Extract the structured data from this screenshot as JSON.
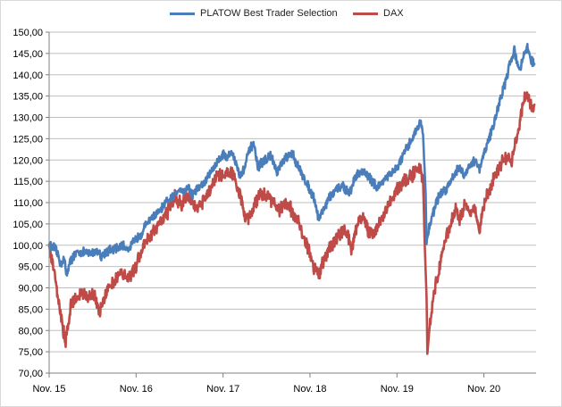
{
  "chart_data": {
    "type": "line",
    "title": "",
    "xlabel": "",
    "ylabel": "",
    "ylim": [
      70,
      150
    ],
    "y_ticks": [
      "70,00",
      "75,00",
      "80,00",
      "85,00",
      "90,00",
      "95,00",
      "100,00",
      "105,00",
      "110,00",
      "115,00",
      "120,00",
      "125,00",
      "130,00",
      "135,00",
      "140,00",
      "145,00",
      "150,00"
    ],
    "x_tick_labels": [
      "Nov. 15",
      "Nov. 16",
      "Nov. 17",
      "Nov. 18",
      "Nov. 19",
      "Nov. 20"
    ],
    "x_range_years": [
      2015.9,
      2021.5
    ],
    "grid": "horizontal",
    "legend_position": "top",
    "series": [
      {
        "name": "PLATOW Best Trader Selection",
        "color": "#4a7ebb",
        "points": [
          [
            2015.9,
            100.0
          ],
          [
            2015.95,
            99.5
          ],
          [
            2016.0,
            98.0
          ],
          [
            2016.03,
            95.5
          ],
          [
            2016.07,
            97.0
          ],
          [
            2016.1,
            93.0
          ],
          [
            2016.13,
            95.5
          ],
          [
            2016.18,
            97.5
          ],
          [
            2016.25,
            98.5
          ],
          [
            2016.35,
            98.0
          ],
          [
            2016.45,
            98.8
          ],
          [
            2016.5,
            97.5
          ],
          [
            2016.55,
            98.5
          ],
          [
            2016.65,
            99.0
          ],
          [
            2016.75,
            99.8
          ],
          [
            2016.82,
            99.2
          ],
          [
            2016.88,
            101.0
          ],
          [
            2016.95,
            102.5
          ],
          [
            2017.05,
            106.0
          ],
          [
            2017.15,
            107.5
          ],
          [
            2017.25,
            110.0
          ],
          [
            2017.35,
            112.0
          ],
          [
            2017.4,
            113.5
          ],
          [
            2017.45,
            112.5
          ],
          [
            2017.5,
            113.8
          ],
          [
            2017.55,
            112.0
          ],
          [
            2017.62,
            113.5
          ],
          [
            2017.7,
            115.0
          ],
          [
            2017.78,
            118.0
          ],
          [
            2017.85,
            120.0
          ],
          [
            2017.9,
            121.5
          ],
          [
            2017.95,
            120.5
          ],
          [
            2018.0,
            122.0
          ],
          [
            2018.05,
            119.0
          ],
          [
            2018.1,
            116.0
          ],
          [
            2018.15,
            118.5
          ],
          [
            2018.2,
            122.0
          ],
          [
            2018.25,
            124.0
          ],
          [
            2018.3,
            118.0
          ],
          [
            2018.35,
            119.5
          ],
          [
            2018.45,
            121.0
          ],
          [
            2018.52,
            117.0
          ],
          [
            2018.6,
            120.0
          ],
          [
            2018.7,
            121.5
          ],
          [
            2018.75,
            119.0
          ],
          [
            2018.85,
            115.0
          ],
          [
            2018.9,
            113.0
          ],
          [
            2018.95,
            111.0
          ],
          [
            2019.0,
            106.0
          ],
          [
            2019.05,
            108.5
          ],
          [
            2019.12,
            111.0
          ],
          [
            2019.2,
            113.0
          ],
          [
            2019.28,
            114.0
          ],
          [
            2019.35,
            112.0
          ],
          [
            2019.42,
            116.0
          ],
          [
            2019.5,
            117.5
          ],
          [
            2019.55,
            116.5
          ],
          [
            2019.62,
            115.0
          ],
          [
            2019.68,
            113.5
          ],
          [
            2019.75,
            115.5
          ],
          [
            2019.82,
            116.5
          ],
          [
            2019.9,
            118.0
          ],
          [
            2019.97,
            121.0
          ],
          [
            2020.05,
            124.0
          ],
          [
            2020.12,
            127.0
          ],
          [
            2020.17,
            129.0
          ],
          [
            2020.2,
            126.0
          ],
          [
            2020.23,
            112.0
          ],
          [
            2020.24,
            101.0
          ],
          [
            2020.26,
            103.0
          ],
          [
            2020.3,
            106.5
          ],
          [
            2020.35,
            110.0
          ],
          [
            2020.4,
            112.0
          ],
          [
            2020.48,
            113.5
          ],
          [
            2020.55,
            116.5
          ],
          [
            2020.62,
            118.5
          ],
          [
            2020.67,
            116.0
          ],
          [
            2020.72,
            118.5
          ],
          [
            2020.8,
            120.0
          ],
          [
            2020.85,
            117.5
          ],
          [
            2020.9,
            121.5
          ],
          [
            2020.95,
            124.5
          ],
          [
            2021.0,
            127.5
          ],
          [
            2021.05,
            131.5
          ],
          [
            2021.1,
            135.0
          ],
          [
            2021.15,
            138.5
          ],
          [
            2021.2,
            142.5
          ],
          [
            2021.25,
            146.0
          ],
          [
            2021.28,
            143.0
          ],
          [
            2021.32,
            141.0
          ],
          [
            2021.36,
            145.0
          ],
          [
            2021.4,
            146.5
          ],
          [
            2021.44,
            143.5
          ],
          [
            2021.48,
            142.5
          ]
        ]
      },
      {
        "name": "DAX",
        "color": "#be4b48",
        "points": [
          [
            2015.9,
            100.5
          ],
          [
            2015.93,
            97.0
          ],
          [
            2015.97,
            93.0
          ],
          [
            2016.0,
            88.0
          ],
          [
            2016.03,
            84.0
          ],
          [
            2016.06,
            80.0
          ],
          [
            2016.09,
            77.5
          ],
          [
            2016.12,
            82.0
          ],
          [
            2016.15,
            86.0
          ],
          [
            2016.2,
            87.5
          ],
          [
            2016.25,
            88.0
          ],
          [
            2016.3,
            89.0
          ],
          [
            2016.35,
            87.5
          ],
          [
            2016.42,
            88.5
          ],
          [
            2016.48,
            84.5
          ],
          [
            2016.52,
            87.5
          ],
          [
            2016.58,
            90.0
          ],
          [
            2016.65,
            92.0
          ],
          [
            2016.72,
            93.5
          ],
          [
            2016.8,
            92.5
          ],
          [
            2016.88,
            94.0
          ],
          [
            2016.93,
            97.0
          ],
          [
            2017.0,
            100.5
          ],
          [
            2017.1,
            103.5
          ],
          [
            2017.2,
            106.0
          ],
          [
            2017.28,
            108.5
          ],
          [
            2017.35,
            111.5
          ],
          [
            2017.42,
            109.5
          ],
          [
            2017.5,
            112.0
          ],
          [
            2017.55,
            110.0
          ],
          [
            2017.6,
            108.0
          ],
          [
            2017.68,
            110.5
          ],
          [
            2017.75,
            113.0
          ],
          [
            2017.82,
            116.0
          ],
          [
            2017.9,
            116.5
          ],
          [
            2018.0,
            117.5
          ],
          [
            2018.05,
            114.5
          ],
          [
            2018.1,
            111.5
          ],
          [
            2018.15,
            107.0
          ],
          [
            2018.2,
            106.0
          ],
          [
            2018.25,
            109.0
          ],
          [
            2018.32,
            111.5
          ],
          [
            2018.4,
            112.0
          ],
          [
            2018.48,
            110.0
          ],
          [
            2018.55,
            108.0
          ],
          [
            2018.62,
            110.0
          ],
          [
            2018.7,
            108.0
          ],
          [
            2018.78,
            104.5
          ],
          [
            2018.85,
            100.5
          ],
          [
            2018.9,
            98.5
          ],
          [
            2018.95,
            94.5
          ],
          [
            2019.0,
            93.0
          ],
          [
            2019.05,
            96.5
          ],
          [
            2019.12,
            99.0
          ],
          [
            2019.2,
            101.5
          ],
          [
            2019.3,
            104.0
          ],
          [
            2019.38,
            99.0
          ],
          [
            2019.45,
            105.5
          ],
          [
            2019.52,
            106.5
          ],
          [
            2019.58,
            102.5
          ],
          [
            2019.65,
            103.0
          ],
          [
            2019.72,
            106.0
          ],
          [
            2019.8,
            109.0
          ],
          [
            2019.88,
            112.5
          ],
          [
            2019.95,
            114.5
          ],
          [
            2020.05,
            116.0
          ],
          [
            2020.12,
            117.5
          ],
          [
            2020.17,
            118.0
          ],
          [
            2020.2,
            115.0
          ],
          [
            2020.22,
            100.0
          ],
          [
            2020.24,
            88.0
          ],
          [
            2020.25,
            74.5
          ],
          [
            2020.28,
            82.0
          ],
          [
            2020.32,
            88.0
          ],
          [
            2020.38,
            94.0
          ],
          [
            2020.45,
            100.5
          ],
          [
            2020.5,
            104.5
          ],
          [
            2020.58,
            108.5
          ],
          [
            2020.62,
            105.5
          ],
          [
            2020.68,
            109.5
          ],
          [
            2020.75,
            108.0
          ],
          [
            2020.8,
            108.5
          ],
          [
            2020.83,
            105.0
          ],
          [
            2020.85,
            103.0
          ],
          [
            2020.88,
            108.0
          ],
          [
            2020.92,
            111.0
          ],
          [
            2020.98,
            113.5
          ],
          [
            2021.05,
            117.5
          ],
          [
            2021.12,
            119.5
          ],
          [
            2021.18,
            121.0
          ],
          [
            2021.22,
            119.5
          ],
          [
            2021.26,
            124.0
          ],
          [
            2021.3,
            127.5
          ],
          [
            2021.35,
            133.5
          ],
          [
            2021.4,
            136.0
          ],
          [
            2021.44,
            132.5
          ],
          [
            2021.48,
            133.0
          ]
        ]
      }
    ]
  }
}
